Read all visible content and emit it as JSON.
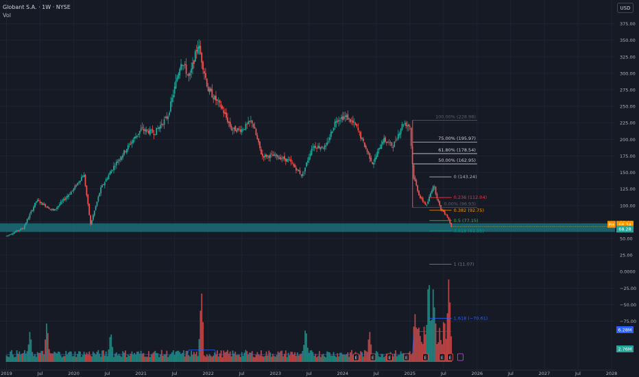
{
  "header": {
    "title": "Globant S.A. · 1W · NYSE",
    "indicator": "Vol",
    "currency": "USD"
  },
  "colors": {
    "background": "#161a25",
    "up": "#26a69a",
    "down": "#ef5350",
    "volume_ma": "#2962ff",
    "support_zone": "#1b6e79",
    "axis_text": "#b2b5be"
  },
  "chart_data": {
    "type": "candlestick",
    "x_range": [
      2019.0,
      2028.0
    ],
    "y_range": [
      -147,
      387
    ],
    "x_ticks": [
      {
        "label": "2019",
        "t": 2019.0
      },
      {
        "label": "Jul",
        "t": 2019.5
      },
      {
        "label": "2020",
        "t": 2020.0
      },
      {
        "label": "Jul",
        "t": 2020.5
      },
      {
        "label": "2021",
        "t": 2021.0
      },
      {
        "label": "Jul",
        "t": 2021.5
      },
      {
        "label": "2022",
        "t": 2022.0
      },
      {
        "label": "Jul",
        "t": 2022.5
      },
      {
        "label": "2023",
        "t": 2023.0
      },
      {
        "label": "Jul",
        "t": 2023.5
      },
      {
        "label": "2024",
        "t": 2024.0
      },
      {
        "label": "Jul",
        "t": 2024.5
      },
      {
        "label": "2025",
        "t": 2025.0
      },
      {
        "label": "Jul",
        "t": 2025.5
      },
      {
        "label": "2026",
        "t": 2026.0
      },
      {
        "label": "Jul",
        "t": 2026.5
      },
      {
        "label": "2027",
        "t": 2027.0
      },
      {
        "label": "Jul",
        "t": 2027.5
      },
      {
        "label": "2028",
        "t": 2028.0
      }
    ],
    "y_ticks": [
      {
        "label": "375.00",
        "v": 375
      },
      {
        "label": "350.00",
        "v": 350
      },
      {
        "label": "325.00",
        "v": 325
      },
      {
        "label": "300.00",
        "v": 300
      },
      {
        "label": "275.00",
        "v": 275
      },
      {
        "label": "250.00",
        "v": 250
      },
      {
        "label": "225.00",
        "v": 225
      },
      {
        "label": "200.00",
        "v": 200
      },
      {
        "label": "175.00",
        "v": 175
      },
      {
        "label": "150.00",
        "v": 150
      },
      {
        "label": "125.00",
        "v": 125
      },
      {
        "label": "100.00",
        "v": 100
      },
      {
        "label": "75.00",
        "v": 75
      },
      {
        "label": "50.00",
        "v": 50
      },
      {
        "label": "25.00",
        "v": 25
      },
      {
        "label": "0.0000",
        "v": 0
      },
      {
        "label": "−25.00",
        "v": -25
      },
      {
        "label": "−50.00",
        "v": -50
      },
      {
        "label": "−75.00",
        "v": -75
      }
    ],
    "price_path": [
      [
        2019.0,
        54
      ],
      [
        2019.25,
        66
      ],
      [
        2019.45,
        108
      ],
      [
        2019.7,
        92
      ],
      [
        2020.0,
        125
      ],
      [
        2020.15,
        148
      ],
      [
        2020.25,
        71
      ],
      [
        2020.4,
        125
      ],
      [
        2020.6,
        160
      ],
      [
        2020.85,
        195
      ],
      [
        2021.0,
        215
      ],
      [
        2021.2,
        210
      ],
      [
        2021.4,
        235
      ],
      [
        2021.6,
        320
      ],
      [
        2021.72,
        292
      ],
      [
        2021.85,
        345
      ],
      [
        2022.0,
        275
      ],
      [
        2022.2,
        248
      ],
      [
        2022.35,
        215
      ],
      [
        2022.5,
        215
      ],
      [
        2022.65,
        228
      ],
      [
        2022.8,
        175
      ],
      [
        2023.0,
        175
      ],
      [
        2023.2,
        168
      ],
      [
        2023.4,
        145
      ],
      [
        2023.55,
        190
      ],
      [
        2023.75,
        188
      ],
      [
        2023.9,
        230
      ],
      [
        2024.05,
        235
      ],
      [
        2024.2,
        220
      ],
      [
        2024.35,
        185
      ],
      [
        2024.45,
        163
      ],
      [
        2024.6,
        200
      ],
      [
        2024.75,
        190
      ],
      [
        2024.9,
        225
      ],
      [
        2025.0,
        220
      ],
      [
        2025.05,
        145
      ],
      [
        2025.15,
        112
      ],
      [
        2025.25,
        100
      ],
      [
        2025.35,
        132
      ],
      [
        2025.45,
        96
      ],
      [
        2025.55,
        85
      ],
      [
        2025.62,
        68
      ]
    ],
    "volume_bursts": [
      {
        "t": 2019.35,
        "v": 0.35
      },
      {
        "t": 2019.6,
        "v": 0.45
      },
      {
        "t": 2020.55,
        "v": 0.35
      },
      {
        "t": 2021.9,
        "v": 0.8
      },
      {
        "t": 2023.45,
        "v": 0.4
      },
      {
        "t": 2024.4,
        "v": 0.35
      },
      {
        "t": 2025.08,
        "v": 0.55
      },
      {
        "t": 2025.28,
        "v": 1.0
      },
      {
        "t": 2025.35,
        "v": 0.85
      },
      {
        "t": 2025.58,
        "v": 0.95
      }
    ],
    "earnings_markers": [
      2024.2,
      2024.45,
      2024.7,
      2024.95,
      2025.23,
      2025.48,
      2025.6
    ],
    "earnings_label": "E",
    "fib_left": {
      "levels": [
        {
          "label": "100.00% (228.98)",
          "v": 228.98,
          "color": "#5d606b"
        },
        {
          "label": "75.00% (195.97)",
          "v": 195.97,
          "color": "#d1d4dc"
        },
        {
          "label": "61.80% (178.54)",
          "v": 178.54,
          "color": "#d1d4dc"
        },
        {
          "label": "50.00% (162.95)",
          "v": 162.95,
          "color": "#d1d4dc"
        },
        {
          "label": "0.00% (96.93)",
          "v": 96.93,
          "color": "#5d606b"
        }
      ]
    },
    "fib_right": {
      "levels": [
        {
          "label": "0 (143.24)",
          "v": 143.24,
          "color": "#b2b5be"
        },
        {
          "label": "0.236 (112.04)",
          "v": 112.04,
          "color": "#f23645"
        },
        {
          "label": "0.382 (92.75)",
          "v": 92.75,
          "color": "#ff9800"
        },
        {
          "label": "0.5 (77.15)",
          "v": 77.15,
          "color": "#4caf50"
        },
        {
          "label": "0.618 (61.55)",
          "v": 61.55,
          "color": "#089981"
        },
        {
          "label": "1 (11.07)",
          "v": 11.07,
          "color": "#787b86"
        },
        {
          "label": "1.618 (−70.61)",
          "v": -70.61,
          "color": "#2962ff"
        }
      ]
    },
    "support_zone": {
      "from": 60,
      "to": 73
    },
    "price_labels": [
      {
        "tag": "Pre",
        "value": "68.34",
        "v": 71.5,
        "color": "#ff9800"
      },
      {
        "tag": "",
        "value": "68.28",
        "v": 64.5,
        "color": "#26a69a"
      }
    ],
    "volume_labels": [
      {
        "value": "6.28M",
        "color": "#2962ff"
      },
      {
        "value": "2.76M",
        "color": "#26a69a"
      }
    ]
  }
}
